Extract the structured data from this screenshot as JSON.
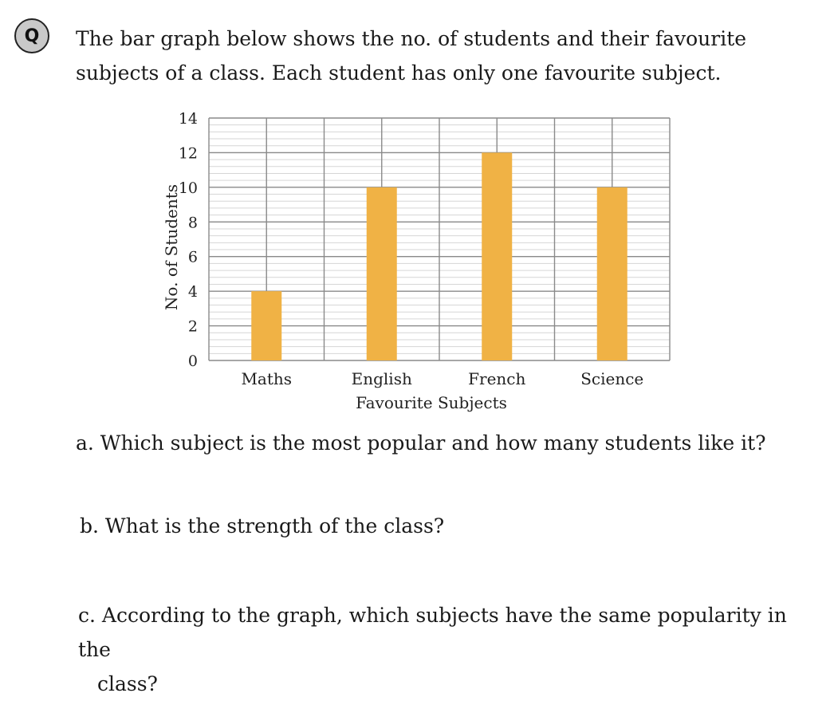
{
  "badge": "Q",
  "question": "The bar graph below shows the no. of students and their favourite subjects of a class. Each student has only one favourite subject.",
  "parts": {
    "a": "a. Which subject is the most popular and how many students like it?",
    "b": "b. What is the strength of the class?",
    "c_line1": "c. According to the graph, which subjects have the same popularity in the",
    "c_line2": "class?"
  },
  "colors": {
    "bar": "#F0B245",
    "grid_major": "#8a8a8a",
    "grid_minor": "#d6d6d6",
    "badge": "#c9c9c9"
  },
  "chart_data": {
    "type": "bar",
    "categories": [
      "Maths",
      "English",
      "French",
      "Science"
    ],
    "values": [
      4,
      10,
      12,
      10
    ],
    "xlabel": "Favourite Subjects",
    "ylabel": "No. of Students",
    "ylim": [
      0,
      14
    ],
    "yticks": [
      0,
      2,
      4,
      6,
      8,
      10,
      12,
      14
    ],
    "grid": true,
    "legend": "none"
  }
}
